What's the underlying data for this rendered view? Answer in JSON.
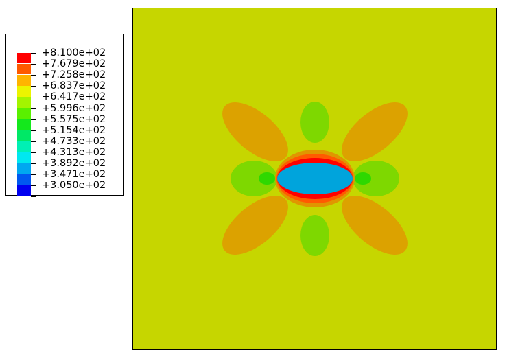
{
  "legend": {
    "levels": [
      {
        "label": "+8.100e+02",
        "color": "#ff0000"
      },
      {
        "label": "+7.679e+02",
        "color": "#ff5a00"
      },
      {
        "label": "+7.258e+02",
        "color": "#ffb400"
      },
      {
        "label": "+6.837e+02",
        "color": "#ecf400"
      },
      {
        "label": "+6.417e+02",
        "color": "#a4f400"
      },
      {
        "label": "+5.996e+02",
        "color": "#5af000"
      },
      {
        "label": "+5.575e+02",
        "color": "#14e81c"
      },
      {
        "label": "+5.154e+02",
        "color": "#00e866"
      },
      {
        "label": "+4.733e+02",
        "color": "#00f0b4"
      },
      {
        "label": "+4.313e+02",
        "color": "#00e8f0"
      },
      {
        "label": "+3.892e+02",
        "color": "#00a8f0"
      },
      {
        "label": "+3.471e+02",
        "color": "#0058f0"
      },
      {
        "label": "+3.050e+02",
        "color": "#0000f0"
      }
    ]
  },
  "plot": {
    "background_color": "#c6d600",
    "lobe_color": "#dca200",
    "side_lobe_color": "#7ed800",
    "inner_green_color": "#2ed800",
    "hole_fill_color": "#00a4dc",
    "hole_ring_colors": [
      "#e09600",
      "#ff5a00",
      "#ff0000"
    ]
  }
}
